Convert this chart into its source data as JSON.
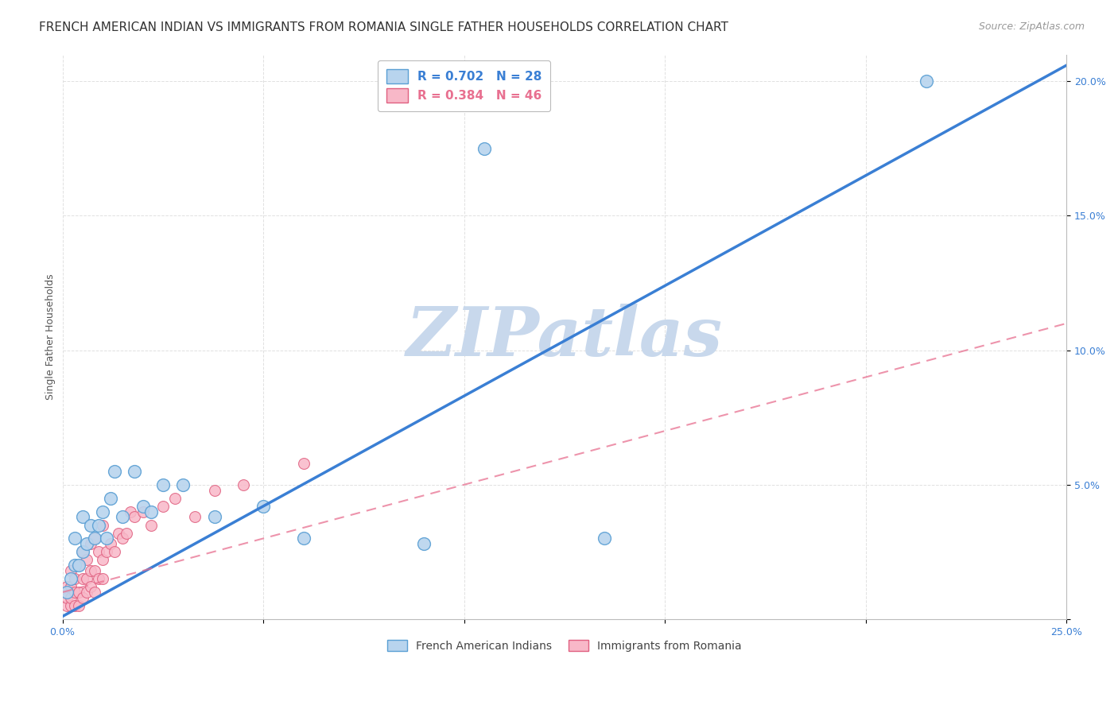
{
  "title": "FRENCH AMERICAN INDIAN VS IMMIGRANTS FROM ROMANIA SINGLE FATHER HOUSEHOLDS CORRELATION CHART",
  "source": "Source: ZipAtlas.com",
  "ylabel": "Single Father Households",
  "xlim": [
    0.0,
    0.25
  ],
  "ylim": [
    0.0,
    0.21
  ],
  "xtick_positions": [
    0.0,
    0.05,
    0.1,
    0.15,
    0.2,
    0.25
  ],
  "xticklabels": [
    "0.0%",
    "",
    "",
    "",
    "",
    "25.0%"
  ],
  "ytick_positions": [
    0.0,
    0.05,
    0.1,
    0.15,
    0.2
  ],
  "yticklabels": [
    "",
    "5.0%",
    "10.0%",
    "15.0%",
    "20.0%"
  ],
  "legend_r1": "R = 0.702   N = 28",
  "legend_r2": "R = 0.384   N = 46",
  "legend_label1": "French American Indians",
  "legend_label2": "Immigrants from Romania",
  "color_blue_fill": "#b8d4ee",
  "color_blue_edge": "#5a9fd4",
  "color_pink_fill": "#f8b8c8",
  "color_pink_edge": "#e06080",
  "trendline_blue_color": "#3a7fd4",
  "trendline_pink_color": "#e87090",
  "watermark_text": "ZIPatlas",
  "watermark_color": "#c8d8ec",
  "title_fontsize": 11,
  "source_fontsize": 9,
  "axis_label_fontsize": 9,
  "tick_fontsize": 9,
  "legend_fontsize": 11,
  "blue_slope": 0.82,
  "blue_intercept": 0.001,
  "pink_slope": 0.4,
  "pink_intercept": 0.01,
  "blue_points_x": [
    0.001,
    0.002,
    0.003,
    0.003,
    0.004,
    0.005,
    0.005,
    0.006,
    0.007,
    0.008,
    0.009,
    0.01,
    0.011,
    0.012,
    0.013,
    0.015,
    0.018,
    0.02,
    0.022,
    0.025,
    0.03,
    0.038,
    0.05,
    0.06,
    0.09,
    0.105,
    0.135,
    0.215
  ],
  "blue_points_y": [
    0.01,
    0.015,
    0.02,
    0.03,
    0.02,
    0.025,
    0.038,
    0.028,
    0.035,
    0.03,
    0.035,
    0.04,
    0.03,
    0.045,
    0.055,
    0.038,
    0.055,
    0.042,
    0.04,
    0.05,
    0.05,
    0.038,
    0.042,
    0.03,
    0.028,
    0.175,
    0.03,
    0.2
  ],
  "pink_points_x": [
    0.001,
    0.001,
    0.001,
    0.002,
    0.002,
    0.002,
    0.002,
    0.003,
    0.003,
    0.003,
    0.004,
    0.004,
    0.004,
    0.005,
    0.005,
    0.005,
    0.006,
    0.006,
    0.006,
    0.007,
    0.007,
    0.007,
    0.008,
    0.008,
    0.008,
    0.009,
    0.009,
    0.01,
    0.01,
    0.01,
    0.011,
    0.012,
    0.013,
    0.014,
    0.015,
    0.016,
    0.017,
    0.018,
    0.02,
    0.022,
    0.025,
    0.028,
    0.033,
    0.038,
    0.045,
    0.06
  ],
  "pink_points_y": [
    0.005,
    0.008,
    0.012,
    0.005,
    0.008,
    0.012,
    0.018,
    0.005,
    0.01,
    0.015,
    0.005,
    0.01,
    0.02,
    0.008,
    0.015,
    0.025,
    0.01,
    0.015,
    0.022,
    0.012,
    0.018,
    0.028,
    0.01,
    0.018,
    0.03,
    0.015,
    0.025,
    0.015,
    0.022,
    0.035,
    0.025,
    0.028,
    0.025,
    0.032,
    0.03,
    0.032,
    0.04,
    0.038,
    0.04,
    0.035,
    0.042,
    0.045,
    0.038,
    0.048,
    0.05,
    0.058
  ]
}
